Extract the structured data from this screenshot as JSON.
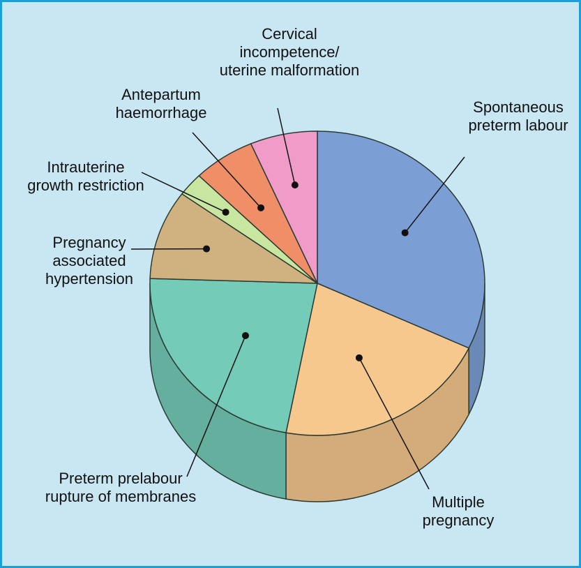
{
  "chart_data": {
    "type": "pie",
    "title": "",
    "slices": [
      {
        "label": "Spontaneous preterm labour",
        "value": 32.0,
        "color": "#7b9fd4"
      },
      {
        "label": "Multiple pregnancy",
        "value": 21.0,
        "color": "#f7c88e"
      },
      {
        "label": "Preterm prelabour rupture of membranes",
        "value": 22.5,
        "color": "#74cbb7"
      },
      {
        "label": "Pregnancy associated hypertension",
        "value": 9.5,
        "color": "#cfb27f"
      },
      {
        "label": "Intrauterine growth restriction",
        "value": 2.5,
        "color": "#c9e6a1"
      },
      {
        "label": "Antepartum haemorrhage",
        "value": 6.0,
        "color": "#f08e68"
      },
      {
        "label": "Cervical incompetence/ uterine malformation",
        "value": 6.5,
        "color": "#f19cc8"
      }
    ]
  },
  "labels": {
    "spontaneous": [
      "Spontaneous",
      "preterm labour"
    ],
    "multiple": [
      "Multiple",
      "pregnancy"
    ],
    "pprom": [
      "Preterm prelabour",
      "rupture of membranes"
    ],
    "hypertension": [
      "Pregnancy",
      "associated",
      "hypertension"
    ],
    "iugr": [
      "Intrauterine",
      "growth restriction"
    ],
    "aph": [
      "Antepartum",
      "haemorrhage"
    ],
    "cervical": [
      "Cervical",
      "incompetence/",
      "uterine malformation"
    ]
  }
}
